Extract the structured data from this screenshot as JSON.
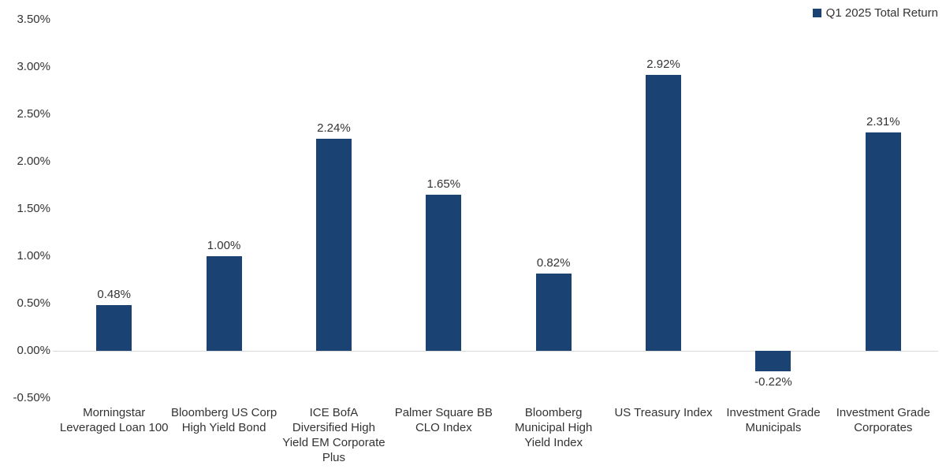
{
  "legend": {
    "label": "Q1 2025 Total Return"
  },
  "colors": {
    "bar": "#1A4374",
    "axis_text": "#333333",
    "baseline": "#D9D9D9",
    "background": "#FFFFFF"
  },
  "chart_data": {
    "type": "bar",
    "title": "",
    "xlabel": "",
    "ylabel": "",
    "series_name": "Q1 2025 Total Return",
    "categories": [
      "Morningstar\nLeveraged Loan 100",
      "Bloomberg US Corp\nHigh Yield Bond",
      "ICE BofA\nDiversified High\nYield EM Corporate\nPlus",
      "Palmer Square BB\nCLO Index",
      "Bloomberg\nMunicipal High\nYield Index",
      "US Treasury Index",
      "Investment Grade\nMunicipals",
      "Investment Grade\nCorporates"
    ],
    "values": [
      0.48,
      1.0,
      2.24,
      1.65,
      0.82,
      2.92,
      -0.22,
      2.31
    ],
    "data_labels": [
      "0.48%",
      "1.00%",
      "2.24%",
      "1.65%",
      "0.82%",
      "2.92%",
      "-0.22%",
      "2.31%"
    ],
    "y_ticks": [
      "3.50%",
      "3.00%",
      "2.50%",
      "2.00%",
      "1.50%",
      "1.00%",
      "0.50%",
      "0.00%",
      "-0.50%"
    ],
    "y_tick_values": [
      3.5,
      3.0,
      2.5,
      2.0,
      1.5,
      1.0,
      0.5,
      0.0,
      -0.5
    ],
    "ylim": [
      -0.5,
      3.5
    ],
    "grid": false,
    "baseline_at": 0.0,
    "legend_position": "top-right",
    "bar_color": "#1A4374"
  }
}
